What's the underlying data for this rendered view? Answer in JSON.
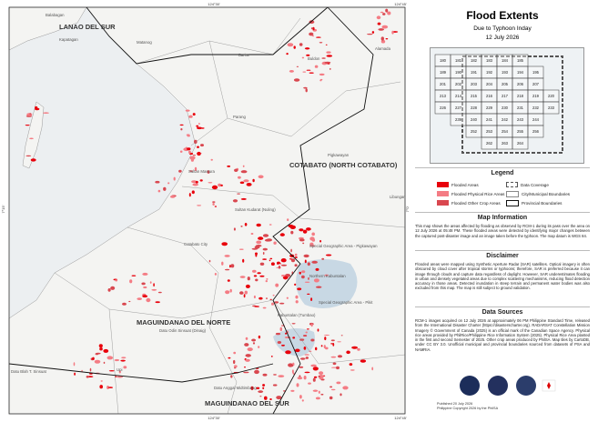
{
  "coordinates": {
    "top": [
      "124°30'",
      "124°45'"
    ],
    "left": [
      "7°15'",
      "7°0'"
    ]
  },
  "map_labels": {
    "provinces": [
      "LANAO DEL SUR",
      "COTABATO (NORTH COTABATO)",
      "MAGUINDANAO DEL NORTE",
      "MAGUINDANAO DEL SUR"
    ],
    "towns": [
      "Balabagan",
      "Kapatagan",
      "Matanog",
      "Barira",
      "Buldon",
      "Alamada",
      "Parang",
      "Sultan Mastura",
      "Sultan Kudarat (Nuling)",
      "Pigkawayan",
      "Libungan",
      "Cotabato City",
      "Special Geographic Area - Pigkawayan",
      "Northern Kabuntalan",
      "Special Geographic Area - Pikit",
      "Kabuntalan (Tumbao)",
      "Datu Odin Sinsuat (Dinaig)",
      "Upi",
      "Datu Blah T. Sinsuat",
      "Datu Anggal Midtimbang"
    ]
  },
  "header": {
    "title": "Flood Extents",
    "subtitle": "Due to Typhoon Inday",
    "date": "12 July 2026"
  },
  "index_map": {
    "rows": [
      [
        "180",
        "181",
        "182",
        "183",
        "184",
        "185"
      ],
      [
        "189",
        "190",
        "191",
        "192",
        "193",
        "194",
        "195"
      ],
      [
        "201",
        "202",
        "203",
        "204",
        "205",
        "206",
        "207"
      ],
      [
        "213",
        "214",
        "215",
        "216",
        "217",
        "218",
        "219",
        "220"
      ],
      [
        "226",
        "227",
        "228",
        "229",
        "230",
        "231",
        "232",
        "233"
      ],
      [
        "239",
        "240",
        "241",
        "242",
        "243",
        "244"
      ],
      [
        "252",
        "253",
        "254",
        "255",
        "256"
      ],
      [
        "262",
        "263",
        "264"
      ]
    ]
  },
  "legend": {
    "title": "Legend",
    "items": [
      {
        "label": "Flooded Areas",
        "color": "#e8000b"
      },
      {
        "label": "Flooded Physical Rice Areas",
        "color": "#f47c84"
      },
      {
        "label": "Flooded Other Crop Areas",
        "color": "#d9474f"
      },
      {
        "label": "Data Coverage"
      },
      {
        "label": "City/Municipal Boundaries"
      },
      {
        "label": "Provincial Boundaries"
      }
    ]
  },
  "sections": [
    {
      "title": "Map Information",
      "text": "This map shows the areas affected by flooding as observed by RCM-1 during its pass over the area on 12 July 2026 at 05:48 PM. These flooded areas were detected by identifying major changes between the captured post-disaster image and an image taken before the typhoon. The map datum is WGS 84."
    },
    {
      "title": "Disclaimer",
      "text": "Flooded areas were mapped using Synthetic Aperture Radar (SAR) satellites. Optical imagery is often obscured by cloud cover after tropical storms or typhoons; therefore, SAR is preferred because it can image through clouds and capture data regardless of daylight. However, SAR underestimates flooding in urban and densely vegetated areas due to complex scattering mechanisms, reducing flood detection accuracy in those areas. Detected inundation in steep terrain and permanent water bodies was also excluded from this map. The map is still subject to ground validation."
    },
    {
      "title": "Data Sources",
      "text": "RCM-1 images acquired on 12 July 2026 at approximately 06 PM Philippine Standard Time, released from the International Disaster Charter (https://disasterscharter.org). RADARSAT Constellation Mission Imagery © Government of Canada (2025) is an official mark of the Canadian Space Agency. Physical rice areas provided by PhilRice/Philippine Rice Information System (2025). Physical Rice Area planted in the first and second Semester of 2025. Other crop areas produced by PhilSA. Map tiles by CartoDB, under CC BY 3.0. Unofficial municipal and provincial boundaries sourced from datasets of PSA and NAMRIA."
    }
  ],
  "footer": {
    "published": "Published 20 July 2026",
    "copyright": "Philippine Copyright 2026 by the PhilSA"
  }
}
